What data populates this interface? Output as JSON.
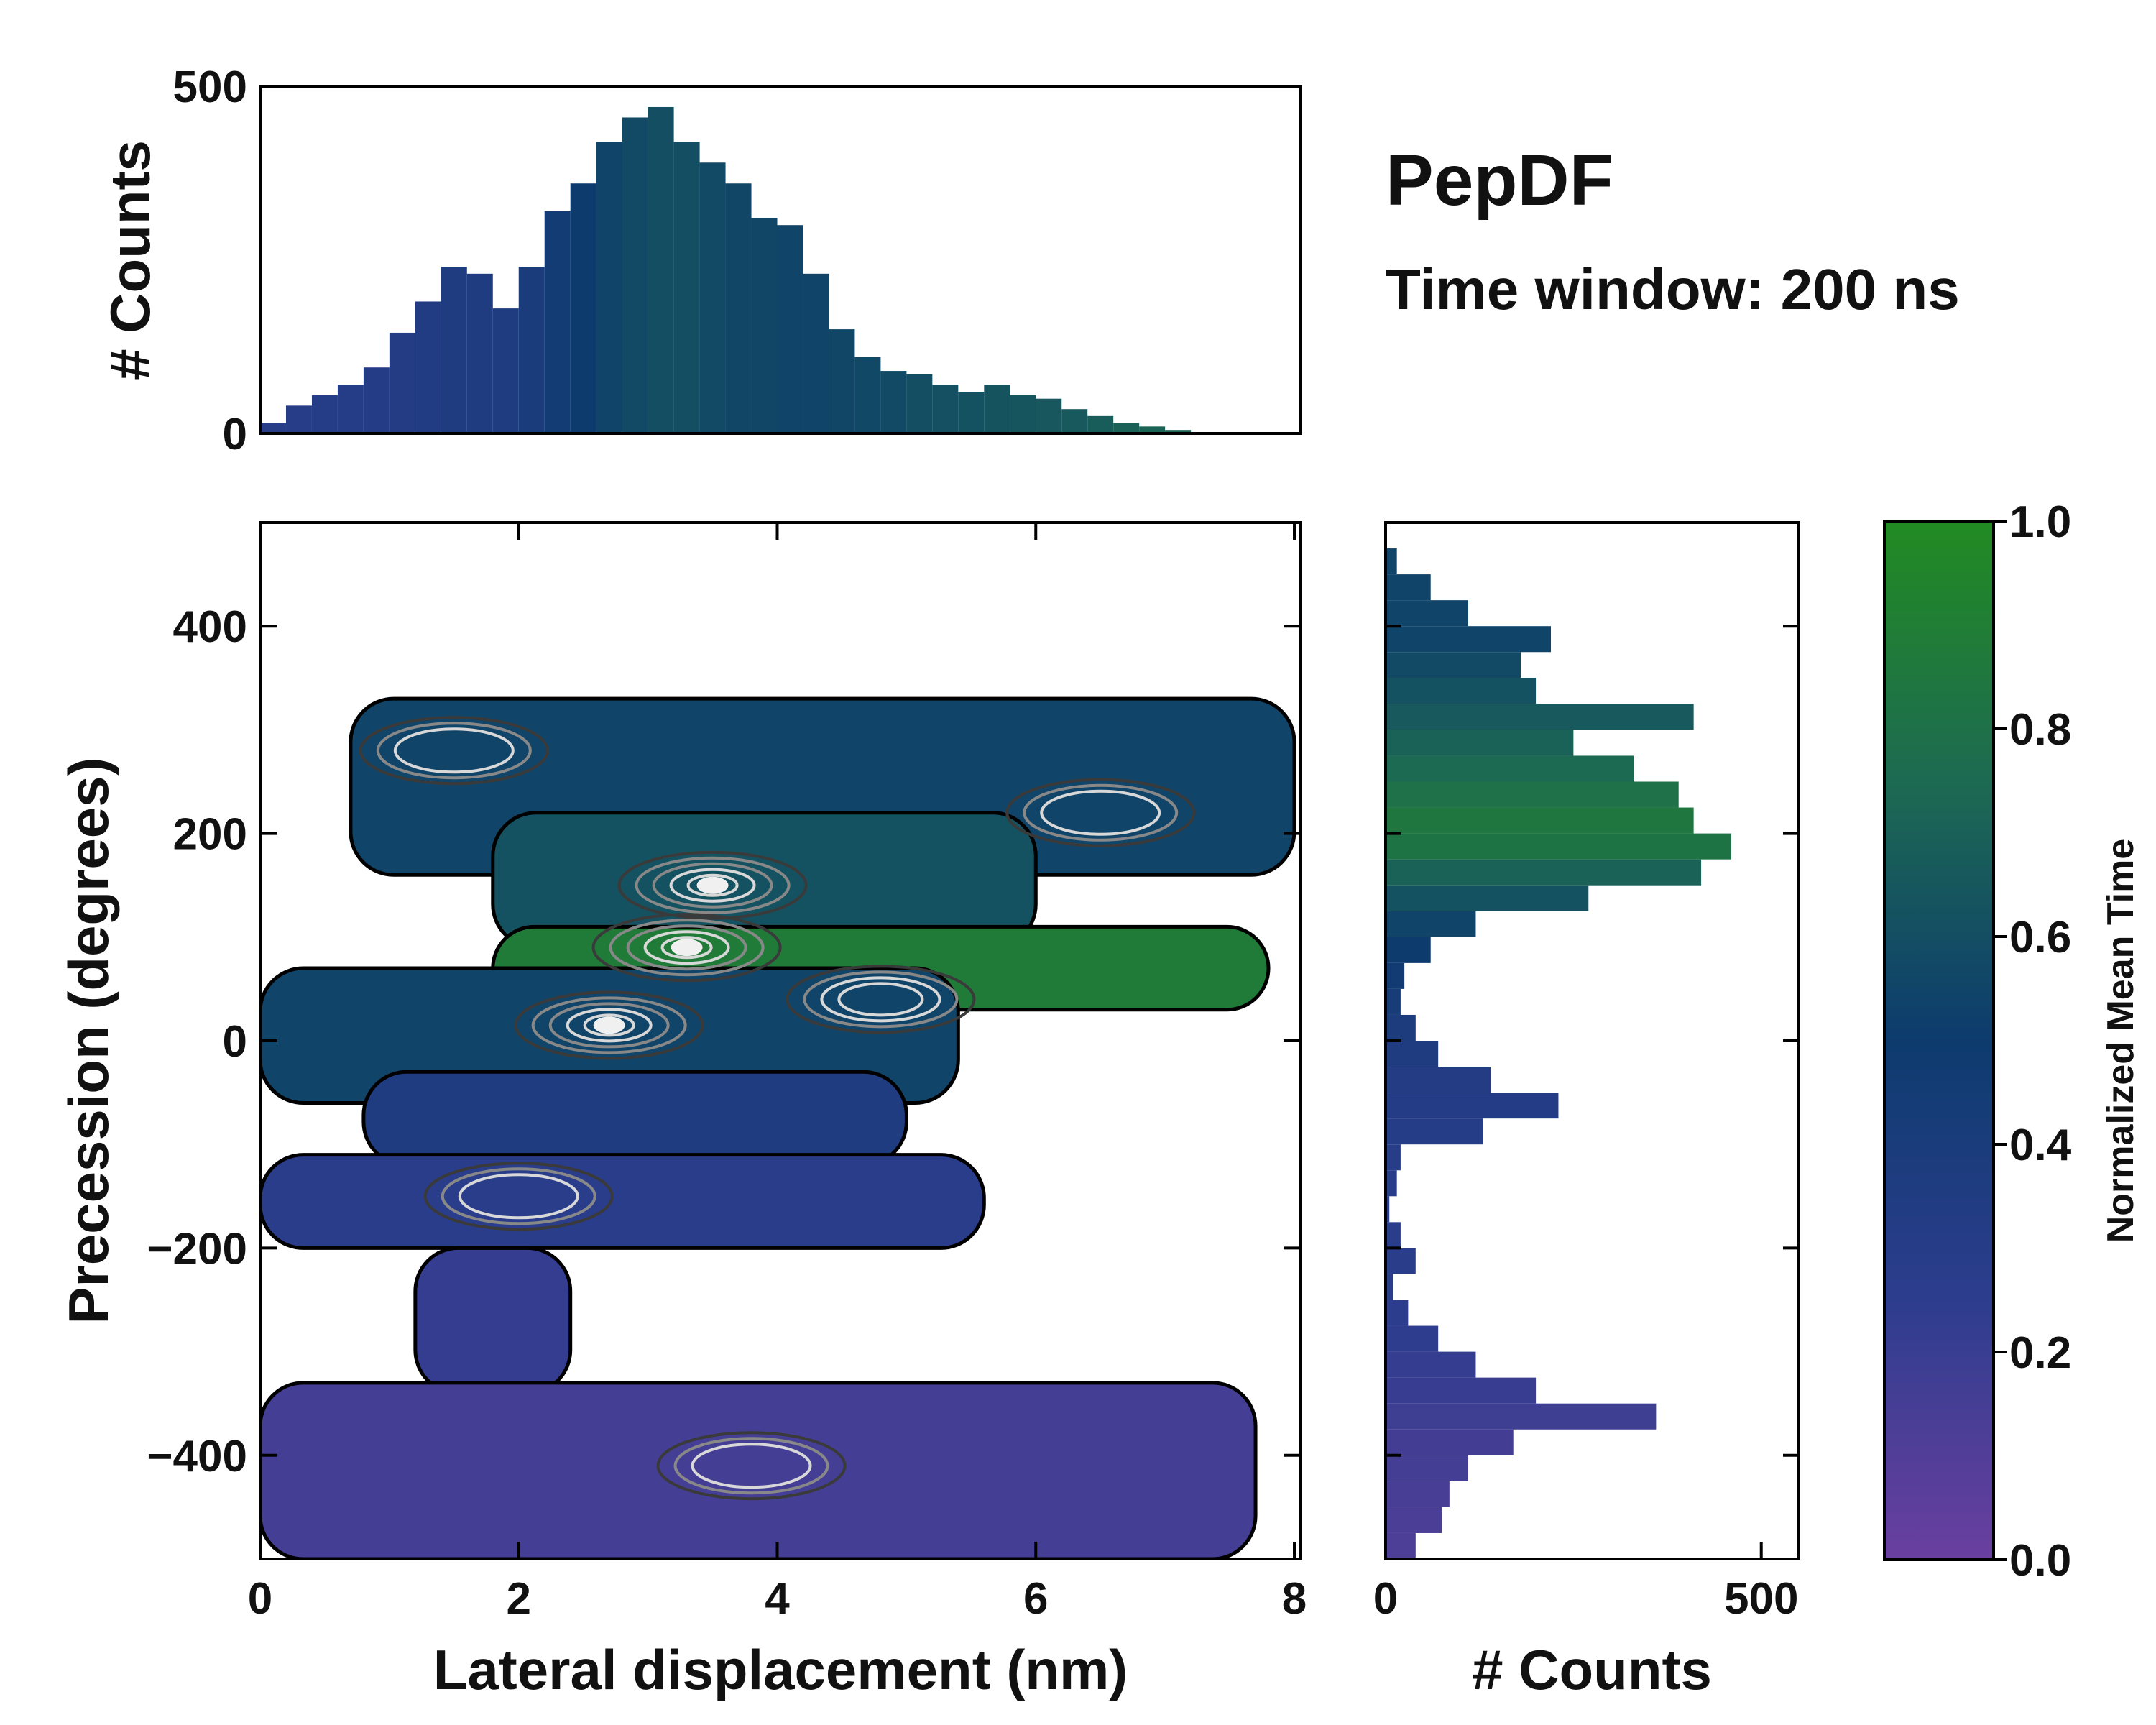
{
  "title": "PepDF",
  "subtitle": "Time window: 200 ns",
  "colors": {
    "cmap": [
      "#6a3fa0",
      "#2d3d8e",
      "#0d3b6e",
      "#1d6a52",
      "#228b22"
    ],
    "contour_outer": "#000000",
    "contour_inner": "#3a3a3a",
    "contour_peak": "#d8d8d8"
  },
  "chart_data": [
    {
      "id": "top-histogram",
      "type": "bar",
      "ylabel": "# Counts",
      "xlim": [
        0,
        8.05
      ],
      "ylim": [
        0,
        500
      ],
      "yticks": [
        0,
        500
      ],
      "ytick_labels": [
        "0",
        "500"
      ],
      "bins_x_start": 0,
      "bin_width": 0.2,
      "values": [
        15,
        40,
        55,
        70,
        95,
        145,
        190,
        240,
        230,
        180,
        240,
        320,
        360,
        420,
        455,
        470,
        420,
        390,
        360,
        310,
        300,
        230,
        150,
        110,
        90,
        85,
        70,
        60,
        70,
        55,
        50,
        35,
        25,
        15,
        10,
        5,
        0,
        0,
        0,
        0
      ],
      "normalized_mean_time": [
        0.3,
        0.3,
        0.31,
        0.31,
        0.32,
        0.33,
        0.34,
        0.35,
        0.36,
        0.37,
        0.4,
        0.45,
        0.5,
        0.55,
        0.58,
        0.6,
        0.6,
        0.58,
        0.56,
        0.56,
        0.55,
        0.55,
        0.56,
        0.57,
        0.58,
        0.6,
        0.61,
        0.62,
        0.63,
        0.64,
        0.65,
        0.66,
        0.68,
        0.7,
        0.72,
        0.72,
        0.72,
        0.72,
        0.72,
        0.72
      ]
    },
    {
      "id": "main-2d-histogram",
      "type": "heatmap",
      "xlabel": "Lateral displacement (nm)",
      "ylabel": "Precession (degrees)",
      "xlim": [
        0,
        8.05
      ],
      "ylim": [
        -500,
        500
      ],
      "xticks": [
        0,
        2,
        4,
        6,
        8
      ],
      "xtick_labels": [
        "0",
        "2",
        "4",
        "6",
        "8"
      ],
      "yticks": [
        -400,
        -200,
        0,
        200,
        400
      ],
      "ytick_labels": [
        "−400",
        "−200",
        "0",
        "200",
        "400"
      ],
      "regions": [
        {
          "name": "band-top",
          "x": [
            0.7,
            8.0
          ],
          "y": [
            160,
            330
          ],
          "value": 0.55
        },
        {
          "name": "band-upper-mid",
          "x": [
            1.8,
            6.0
          ],
          "y": [
            90,
            220
          ],
          "value": 0.62
        },
        {
          "name": "band-green",
          "x": [
            1.8,
            7.8
          ],
          "y": [
            30,
            110
          ],
          "value": 0.88
        },
        {
          "name": "band-zero",
          "x": [
            0.0,
            5.4
          ],
          "y": [
            -60,
            70
          ],
          "value": 0.55
        },
        {
          "name": "band-neg",
          "x": [
            0.8,
            5.0
          ],
          "y": [
            -120,
            -30
          ],
          "value": 0.35
        },
        {
          "name": "band-minus-150",
          "x": [
            0.0,
            5.6
          ],
          "y": [
            -200,
            -110
          ],
          "value": 0.27
        },
        {
          "name": "band-minus-300",
          "x": [
            1.2,
            2.4
          ],
          "y": [
            -340,
            -200
          ],
          "value": 0.22
        },
        {
          "name": "band-minus-400",
          "x": [
            0.0,
            7.7
          ],
          "y": [
            -500,
            -330
          ],
          "value": 0.15
        }
      ],
      "peaks": [
        {
          "x": 3.5,
          "y": 150,
          "level": 0.95
        },
        {
          "x": 3.3,
          "y": 90,
          "level": 1.0
        },
        {
          "x": 2.7,
          "y": 15,
          "level": 0.9
        },
        {
          "x": 4.8,
          "y": 40,
          "level": 0.7
        },
        {
          "x": 1.5,
          "y": 280,
          "level": 0.5
        },
        {
          "x": 6.5,
          "y": 220,
          "level": 0.45
        },
        {
          "x": 2.0,
          "y": -150,
          "level": 0.4
        },
        {
          "x": 3.8,
          "y": -410,
          "level": 0.45
        }
      ]
    },
    {
      "id": "right-histogram",
      "type": "bar",
      "orientation": "horizontal",
      "xlabel": "# Counts",
      "xlim": [
        0,
        550
      ],
      "ylim": [
        -500,
        500
      ],
      "xticks": [
        0,
        500
      ],
      "xtick_labels": [
        "0",
        "500"
      ],
      "bins_y_start": -500,
      "bin_height": 25,
      "values": [
        40,
        75,
        85,
        110,
        170,
        360,
        200,
        120,
        70,
        30,
        10,
        40,
        20,
        5,
        15,
        20,
        130,
        230,
        140,
        70,
        40,
        20,
        25,
        60,
        120,
        270,
        420,
        460,
        410,
        390,
        330,
        250,
        410,
        200,
        180,
        220,
        110,
        60,
        15,
        0
      ],
      "normalized_mean_time": [
        0.12,
        0.13,
        0.14,
        0.15,
        0.16,
        0.18,
        0.2,
        0.22,
        0.24,
        0.26,
        0.27,
        0.27,
        0.28,
        0.28,
        0.29,
        0.3,
        0.31,
        0.32,
        0.33,
        0.35,
        0.38,
        0.42,
        0.46,
        0.5,
        0.55,
        0.62,
        0.7,
        0.82,
        0.85,
        0.8,
        0.75,
        0.7,
        0.66,
        0.62,
        0.58,
        0.55,
        0.55,
        0.55,
        0.55,
        0.55
      ]
    },
    {
      "id": "colorbar",
      "type": "colorbar",
      "label": "Normalized Mean Time",
      "range": [
        0.0,
        1.0
      ],
      "ticks": [
        0.0,
        0.2,
        0.4,
        0.6,
        0.8,
        1.0
      ],
      "tick_labels": [
        "0.0",
        "0.2",
        "0.4",
        "0.6",
        "0.8",
        "1.0"
      ]
    }
  ]
}
